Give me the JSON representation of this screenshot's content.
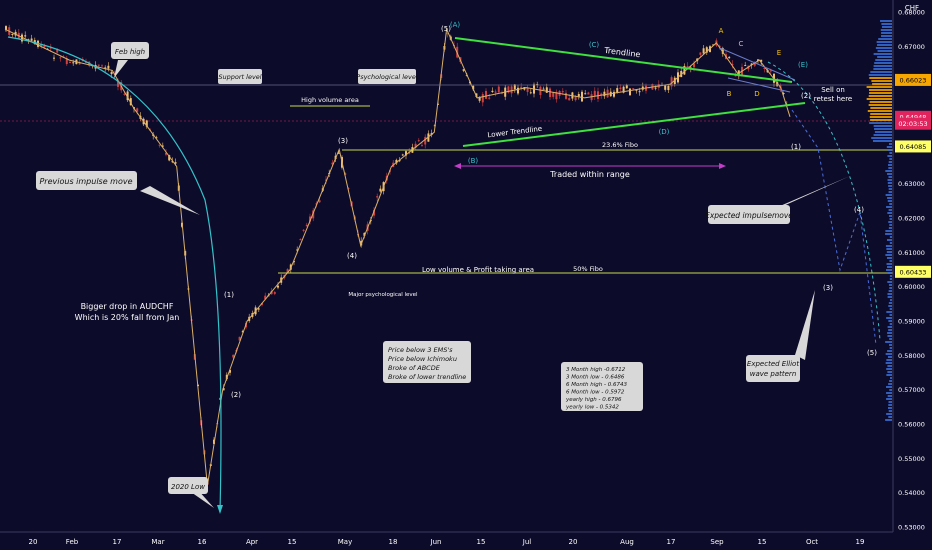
{
  "currency": "CHF",
  "axis_x": {
    "labels": [
      "20",
      "Feb",
      "17",
      "Mar",
      "16",
      "Apr",
      "15",
      "May",
      "18",
      "Jun",
      "15",
      "Jul",
      "20",
      "Aug",
      "17",
      "Sep",
      "15",
      "Oct",
      "19"
    ]
  },
  "axis_y": {
    "ticks": [
      "0.53000",
      "0.54000",
      "0.55000",
      "0.56000",
      "0.57000",
      "0.58000",
      "0.59000",
      "0.60000",
      "0.61000",
      "0.62000",
      "0.63000",
      "0.64000",
      "0.65000",
      "0.66000",
      "0.67000",
      "0.68000"
    ],
    "range": [
      0.53,
      0.68
    ]
  },
  "price_tags": [
    {
      "label": "0.66023",
      "value": 0.66023,
      "bg": "#f7a600",
      "fg": "#000000"
    },
    {
      "label": "0.64948",
      "value": 0.64948,
      "bg": "#e0245e",
      "fg": "#ffffff"
    },
    {
      "label": "02:03:53",
      "value": 0.64748,
      "bg": "#e0245e",
      "fg": "#ffffff"
    },
    {
      "label": "0.64085",
      "value": 0.64085,
      "bg": "#ffff66",
      "fg": "#000000"
    },
    {
      "label": "0.60433",
      "value": 0.60433,
      "bg": "#ffff66",
      "fg": "#000000"
    }
  ],
  "annotations": {
    "feb_high": "Feb high",
    "support_level": "Support level",
    "psychological_level": "Psychological level",
    "high_volume_area": "High volume area",
    "previous_impulse": "Previous impulse move",
    "bigger_drop_1": "Bigger drop in AUDCHF",
    "bigger_drop_2": "Which is 20% fall from Jan",
    "low_2020": "2020 Low",
    "low_volume": "Low volume & Profit taking area",
    "fibo_50": "50% Fibo",
    "fibo_236": "23.6% Fibo",
    "major_psych": "Major psychological level",
    "trendline": "Trendline",
    "lower_trendline": "Lower Trendline",
    "traded_range": "Traded within range",
    "sell_retest_1": "Sell on",
    "sell_retest_2": "retest here",
    "expected_impulse": "Expected impulsemove",
    "expected_elliot_1": "Expected Elliot",
    "expected_elliot_2": "wave pattern",
    "price_notes": [
      "Price below 3 EMS's",
      "Price below Ichimoku",
      "Broke of ABCDE",
      "Broke of lower trendline"
    ],
    "stats": [
      "3 Month high  -0.6712",
      "3 Month low   - 0.6486",
      "6 Month high - 0.6743",
      "6 Month low  - 0.5972",
      "yearly high    - 0.6796",
      "yearly low     - 0.5342"
    ]
  },
  "wave_labels": {
    "w1": "(1)",
    "w2": "(2)",
    "w3": "(3)",
    "w4": "(4)",
    "w5": "(5)",
    "wA": "(A)",
    "wB": "(B)",
    "wC": "(C)",
    "wD": "(D)",
    "wE": "(E)",
    "A": "A",
    "B": "B",
    "C": "C",
    "D": "D",
    "E": "E",
    "f1": "(1)",
    "f2": "(2)",
    "f3": "(3)",
    "f4": "(4)",
    "f5": "(5)"
  },
  "chart_data": {
    "type": "line",
    "series_desc": "AUD/CHF daily price path (approximate)",
    "x": [
      "2020-01-13",
      "2020-01-20",
      "2020-02-03",
      "2020-02-17",
      "2020-02-24",
      "2020-03-09",
      "2020-03-19",
      "2020-03-24",
      "2020-04-01",
      "2020-04-15",
      "2020-05-01",
      "2020-05-08",
      "2020-05-18",
      "2020-06-01",
      "2020-06-05",
      "2020-06-15",
      "2020-07-01",
      "2020-07-20",
      "2020-08-03",
      "2020-08-17",
      "2020-09-01",
      "2020-09-08",
      "2020-09-15",
      "2020-09-22",
      "2020-09-25"
    ],
    "y": [
      0.675,
      0.672,
      0.666,
      0.663,
      0.652,
      0.635,
      0.542,
      0.57,
      0.59,
      0.605,
      0.64,
      0.612,
      0.635,
      0.645,
      0.675,
      0.655,
      0.658,
      0.655,
      0.657,
      0.659,
      0.671,
      0.662,
      0.666,
      0.658,
      0.6495
    ],
    "ylim": [
      0.53,
      0.68
    ],
    "levels": [
      0.66023,
      0.64948,
      0.64085,
      0.60433
    ]
  }
}
